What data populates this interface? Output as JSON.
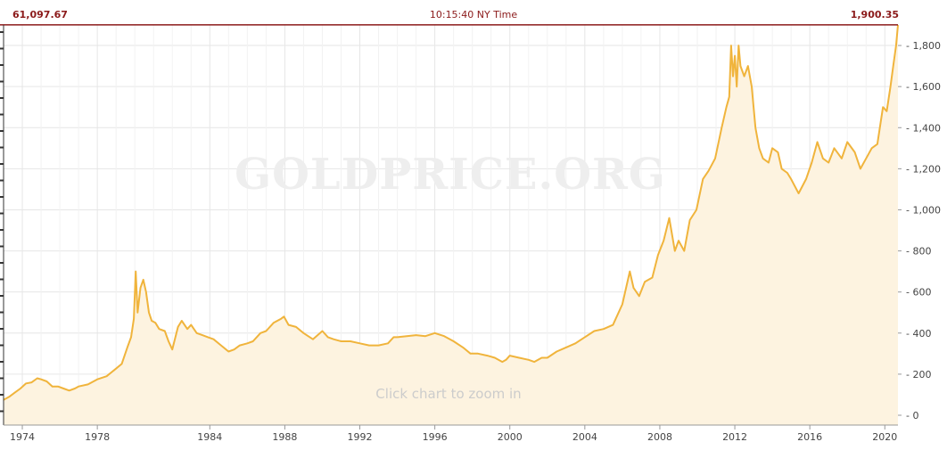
{
  "header": {
    "left_value": "61,097.67",
    "time": "10:15:40 NY Time",
    "right_value": "1,900.35"
  },
  "watermark": "GOLDPRICE.ORG",
  "zoom_hint": "Click chart to zoom in",
  "colors": {
    "line": "#f0b43c",
    "fill": "#fdf3e0",
    "current_price_line": "#8b1a1a",
    "grid": "#e6e6e6",
    "text": "#444444"
  },
  "chart_data": {
    "type": "area",
    "xlim": [
      1973.0,
      2020.7
    ],
    "ylim": [
      0,
      1900
    ],
    "grid": true,
    "x_ticks": [
      "1974",
      "1978",
      "1984",
      "1988",
      "1992",
      "1996",
      "2000",
      "2004",
      "2008",
      "2012",
      "2016",
      "2020"
    ],
    "y_ticks": [
      "0",
      "200",
      "400",
      "600",
      "800",
      "1,000",
      "1,200",
      "1,400",
      "1,600",
      "1,800"
    ],
    "current_price": 1900.35,
    "series": [
      {
        "x": [
          1973.0,
          1973.3,
          1973.6,
          1973.9,
          1974.2,
          1974.5,
          1974.8,
          1975.0,
          1975.3,
          1975.6,
          1975.9,
          1976.2,
          1976.5,
          1976.8,
          1977.0,
          1977.5,
          1978.0,
          1978.5,
          1978.9,
          1979.3,
          1979.6,
          1979.8,
          1979.95,
          1980.05,
          1980.15,
          1980.3,
          1980.45,
          1980.6,
          1980.75,
          1980.9,
          1981.1,
          1981.3,
          1981.6,
          1981.8,
          1982.0,
          1982.3,
          1982.5,
          1982.8,
          1983.0,
          1983.3,
          1983.6,
          1983.9,
          1984.2,
          1984.6,
          1985.0,
          1985.3,
          1985.6,
          1986.0,
          1986.3,
          1986.7,
          1987.0,
          1987.4,
          1987.8,
          1987.95,
          1988.2,
          1988.6,
          1989.0,
          1989.5,
          1990.0,
          1990.3,
          1990.6,
          1991.0,
          1991.5,
          1992.0,
          1992.5,
          1993.0,
          1993.5,
          1993.8,
          1994.0,
          1994.5,
          1995.0,
          1995.5,
          1996.0,
          1996.5,
          1997.0,
          1997.5,
          1997.9,
          1998.3,
          1998.8,
          1999.2,
          1999.6,
          1999.8,
          2000.0,
          2000.5,
          2001.0,
          2001.3,
          2001.7,
          2002.0,
          2002.5,
          2003.0,
          2003.5,
          2004.0,
          2004.5,
          2005.0,
          2005.5,
          2006.0,
          2006.4,
          2006.6,
          2006.9,
          2007.2,
          2007.6,
          2007.9,
          2008.2,
          2008.5,
          2008.8,
          2009.0,
          2009.3,
          2009.6,
          2009.95,
          2010.3,
          2010.6,
          2010.95,
          2011.3,
          2011.55,
          2011.7,
          2011.8,
          2011.9,
          2012.0,
          2012.1,
          2012.2,
          2012.3,
          2012.5,
          2012.7,
          2012.9,
          2013.1,
          2013.3,
          2013.5,
          2013.8,
          2014.0,
          2014.3,
          2014.5,
          2014.8,
          2015.0,
          2015.4,
          2015.8,
          2016.1,
          2016.4,
          2016.7,
          2017.0,
          2017.3,
          2017.7,
          2018.0,
          2018.4,
          2018.7,
          2019.0,
          2019.3,
          2019.6,
          2019.9,
          2020.1,
          2020.3,
          2020.45,
          2020.6,
          2020.7
        ],
        "values": [
          75,
          90,
          110,
          130,
          155,
          160,
          180,
          175,
          165,
          140,
          140,
          130,
          120,
          130,
          140,
          150,
          175,
          190,
          220,
          250,
          330,
          380,
          470,
          700,
          500,
          620,
          660,
          600,
          500,
          460,
          450,
          420,
          410,
          360,
          320,
          430,
          460,
          420,
          440,
          400,
          390,
          380,
          370,
          340,
          310,
          320,
          340,
          350,
          360,
          400,
          410,
          450,
          470,
          480,
          440,
          430,
          400,
          370,
          410,
          380,
          370,
          360,
          360,
          350,
          340,
          340,
          350,
          380,
          380,
          385,
          390,
          385,
          400,
          385,
          360,
          330,
          300,
          300,
          290,
          280,
          260,
          270,
          290,
          280,
          270,
          260,
          280,
          280,
          310,
          330,
          350,
          380,
          410,
          420,
          440,
          540,
          700,
          620,
          580,
          650,
          670,
          780,
          850,
          960,
          800,
          850,
          800,
          950,
          1000,
          1150,
          1190,
          1250,
          1400,
          1500,
          1550,
          1800,
          1650,
          1750,
          1600,
          1800,
          1700,
          1650,
          1700,
          1600,
          1400,
          1300,
          1250,
          1230,
          1300,
          1280,
          1200,
          1180,
          1150,
          1080,
          1150,
          1230,
          1330,
          1250,
          1230,
          1300,
          1250,
          1330,
          1280,
          1200,
          1250,
          1300,
          1320,
          1500,
          1480,
          1600,
          1700,
          1800,
          1900
        ]
      }
    ]
  }
}
